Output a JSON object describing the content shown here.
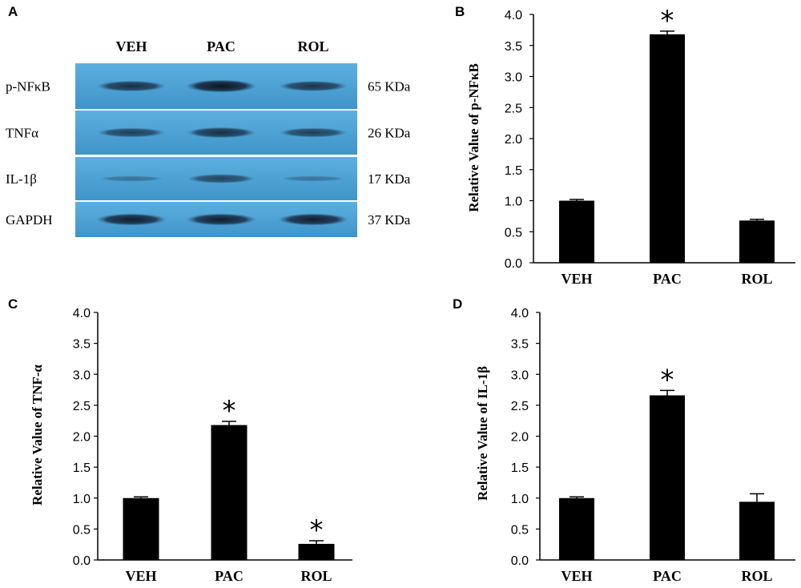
{
  "blot": {
    "panel_letter": "A",
    "lanes": [
      "VEH",
      "PAC",
      "ROL"
    ],
    "rows": [
      {
        "protein": "p-NFκB",
        "size": "65 KDa",
        "intensity": [
          0.75,
          1.0,
          0.7
        ]
      },
      {
        "protein": "TNFα",
        "size": "26 KDa",
        "intensity": [
          0.6,
          0.75,
          0.6
        ]
      },
      {
        "protein": "IL-1β",
        "size": "17 KDa",
        "intensity": [
          0.12,
          0.55,
          0.1
        ]
      },
      {
        "protein": "GAPDH",
        "size": "37 KDa",
        "intensity": [
          0.9,
          0.9,
          0.9
        ]
      }
    ],
    "colors": {
      "background": "#4ea3d6",
      "band": "#0f1a28"
    }
  },
  "chart_data": [
    {
      "panel": "B",
      "type": "bar",
      "categories": [
        "VEH",
        "PAC",
        "ROL"
      ],
      "values": [
        1.0,
        3.68,
        0.68
      ],
      "errors": [
        0.02,
        0.05,
        0.02
      ],
      "significant": [
        false,
        true,
        false
      ],
      "marker": "*",
      "ylabel": "Relative Value of p-NFκB",
      "ylim": [
        0,
        4.0
      ],
      "yticks": [
        "0.0",
        "0.5",
        "1.0",
        "1.5",
        "2.0",
        "2.5",
        "3.0",
        "3.5",
        "4.0"
      ],
      "bar_color": "#000000"
    },
    {
      "panel": "C",
      "type": "bar",
      "categories": [
        "VEH",
        "PAC",
        "ROL"
      ],
      "values": [
        1.0,
        2.18,
        0.26
      ],
      "errors": [
        0.02,
        0.06,
        0.05
      ],
      "significant": [
        false,
        true,
        true
      ],
      "marker": "*",
      "ylabel": "Relative Value of TNF-α",
      "ylim": [
        0,
        4.0
      ],
      "yticks": [
        "0.0",
        "0.5",
        "1.0",
        "1.5",
        "2.0",
        "2.5",
        "3.0",
        "3.5",
        "4.0"
      ],
      "bar_color": "#000000"
    },
    {
      "panel": "D",
      "type": "bar",
      "categories": [
        "VEH",
        "PAC",
        "ROL"
      ],
      "values": [
        1.0,
        2.66,
        0.94
      ],
      "errors": [
        0.02,
        0.08,
        0.13
      ],
      "significant": [
        false,
        true,
        false
      ],
      "marker": "*",
      "ylabel": "Relative Value of IL-1β",
      "ylim": [
        0,
        4.0
      ],
      "yticks": [
        "0.0",
        "0.5",
        "1.0",
        "1.5",
        "2.0",
        "2.5",
        "3.0",
        "3.5",
        "4.0"
      ],
      "bar_color": "#000000"
    }
  ]
}
